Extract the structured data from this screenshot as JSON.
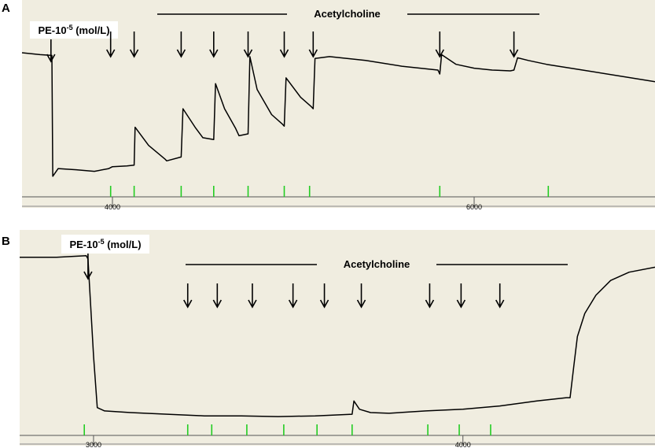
{
  "chart_data": [
    {
      "type": "line",
      "panel_label": "A",
      "drug_label": "PE-10",
      "drug_exponent": "-5",
      "drug_unit": " (mol/L)",
      "agonist_label": "Acetylcholine",
      "xlim": [
        3500,
        7000
      ],
      "x_ticks": [
        4000,
        6000
      ],
      "drug_time": 3660,
      "acetylcholine_additions": [
        3990,
        4120,
        4380,
        4560,
        4750,
        4950,
        5110,
        5810,
        6220
      ],
      "green_markers": [
        3990,
        4120,
        4380,
        4560,
        4750,
        4950,
        5090,
        5810,
        6410
      ],
      "trace": {
        "x": [
          3500,
          3600,
          3665,
          3670,
          3700,
          3800,
          3900,
          3980,
          4000,
          4080,
          4120,
          4125,
          4200,
          4290,
          4300,
          4380,
          4390,
          4460,
          4500,
          4560,
          4570,
          4620,
          4680,
          4700,
          4750,
          4760,
          4800,
          4880,
          4940,
          4950,
          4960,
          5040,
          5100,
          5110,
          5120,
          5200,
          5400,
          5600,
          5800,
          5810,
          5820,
          5900,
          6000,
          6100,
          6200,
          6220,
          6240,
          6300,
          6400,
          6600,
          6800,
          7000
        ],
        "y": [
          3.65,
          3.6,
          3.58,
          0.45,
          0.65,
          0.62,
          0.58,
          0.65,
          0.7,
          0.72,
          0.74,
          1.72,
          1.25,
          0.9,
          0.85,
          0.95,
          2.2,
          1.7,
          1.45,
          1.4,
          2.85,
          2.2,
          1.7,
          1.5,
          1.55,
          3.55,
          2.7,
          2.05,
          1.8,
          1.75,
          3.0,
          2.5,
          2.25,
          2.2,
          3.5,
          3.55,
          3.45,
          3.3,
          3.2,
          3.1,
          3.6,
          3.35,
          3.25,
          3.2,
          3.18,
          3.2,
          3.52,
          3.45,
          3.35,
          3.2,
          3.05,
          2.9
        ]
      }
    },
    {
      "type": "line",
      "panel_label": "B",
      "drug_label": "PE-10",
      "drug_exponent": "-5",
      "drug_unit": " (mol/L)",
      "agonist_label": "Acetylcholine",
      "xlim": [
        2800,
        4520
      ],
      "x_ticks": [
        3000,
        4000
      ],
      "drug_time": 2985,
      "acetylcholine_additions": [
        3255,
        3335,
        3430,
        3540,
        3625,
        3725,
        3910,
        3995,
        4100
      ],
      "green_markers": [
        2975,
        3255,
        3320,
        3415,
        3515,
        3605,
        3700,
        3905,
        3990,
        4075
      ],
      "trace": {
        "x": [
          2800,
          2900,
          2980,
          2985,
          3000,
          3010,
          3030,
          3100,
          3200,
          3300,
          3400,
          3500,
          3600,
          3700,
          3705,
          3720,
          3750,
          3800,
          3900,
          4000,
          4100,
          4200,
          4280,
          4290,
          4300,
          4310,
          4330,
          4360,
          4400,
          4450,
          4520
        ],
        "y": [
          5.2,
          5.2,
          5.25,
          5.15,
          2.2,
          0.65,
          0.55,
          0.5,
          0.45,
          0.4,
          0.4,
          0.38,
          0.4,
          0.45,
          0.85,
          0.6,
          0.5,
          0.48,
          0.55,
          0.6,
          0.7,
          0.85,
          0.95,
          0.95,
          1.9,
          2.8,
          3.5,
          4.05,
          4.5,
          4.75,
          4.9
        ]
      }
    }
  ],
  "colors": {
    "background": "#f0ede0",
    "trace": "#000000",
    "marker": "#22cc22"
  }
}
